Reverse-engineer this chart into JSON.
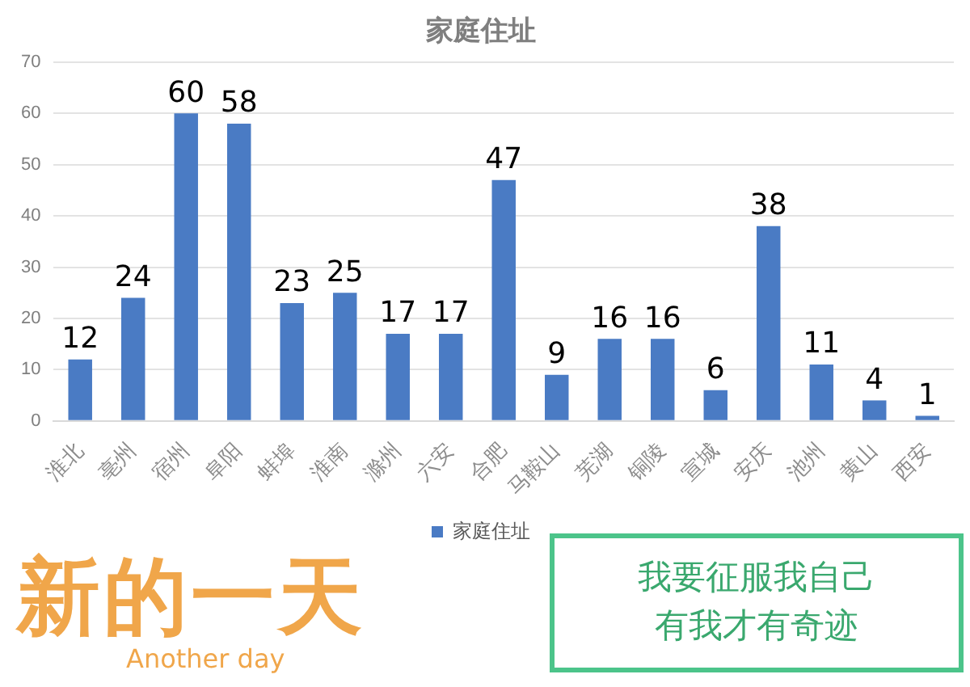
{
  "chart_data": {
    "type": "bar",
    "title": "家庭住址",
    "categories": [
      "淮北",
      "亳州",
      "宿州",
      "阜阳",
      "蚌埠",
      "淮南",
      "滁州",
      "六安",
      "合肥",
      "马鞍山",
      "芜湖",
      "铜陵",
      "宣城",
      "安庆",
      "池州",
      "黄山",
      "西安"
    ],
    "series": [
      {
        "name": "家庭住址",
        "color": "#4a7bc4",
        "values": [
          12,
          24,
          60,
          58,
          23,
          25,
          17,
          17,
          47,
          9,
          16,
          16,
          6,
          38,
          11,
          4,
          1
        ]
      }
    ],
    "ylim": [
      0,
      70
    ],
    "yticks": [
      0,
      10,
      20,
      30,
      40,
      50,
      60,
      70
    ],
    "grid": "y",
    "legend": "bottom",
    "data_labels": true,
    "annotations": [
      "新的一天",
      "Another day",
      "我要征服我自己",
      "有我才有奇迹"
    ]
  }
}
